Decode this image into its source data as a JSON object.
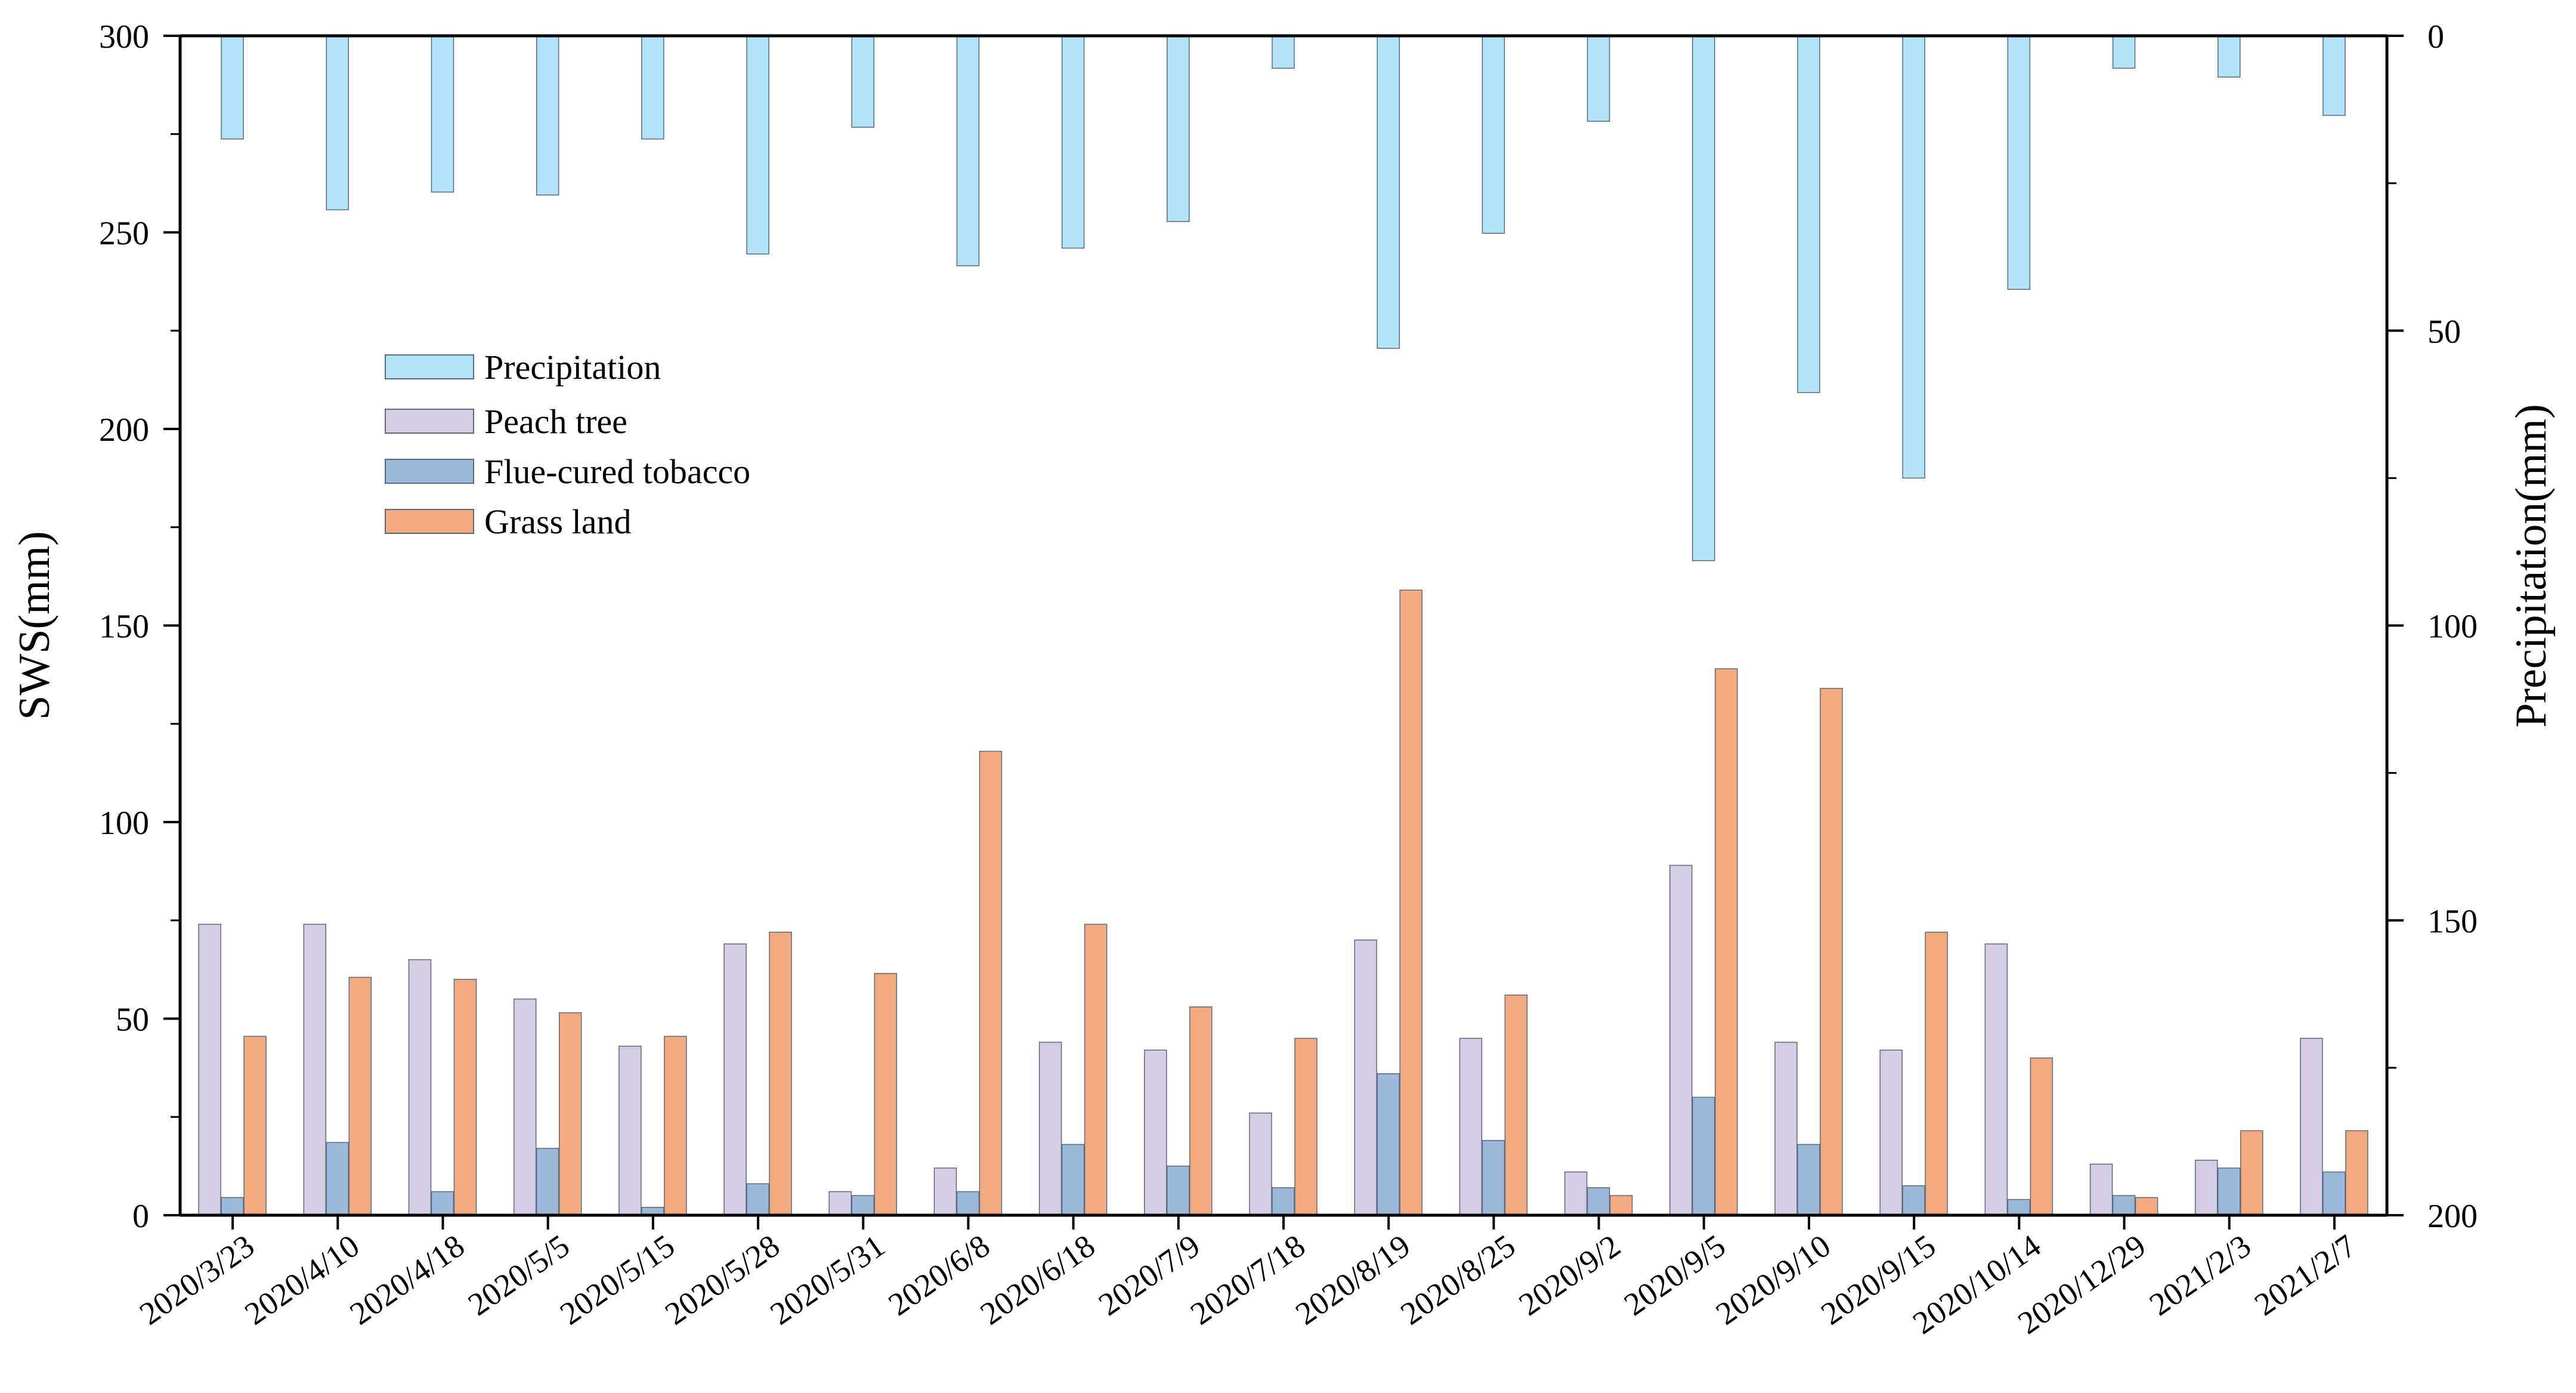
{
  "chart_data": {
    "type": "bar",
    "title": "",
    "xlabel": "",
    "ylabel_left": "SWS(mm)",
    "ylabel_right": "Precipitation(mm)",
    "ylim_left": [
      0,
      300
    ],
    "ylim_right": [
      0,
      200
    ],
    "right_axis_inverted": true,
    "yticks_left": [
      "0",
      "50",
      "100",
      "150",
      "200",
      "250",
      "300"
    ],
    "yticks_right": [
      "0",
      "50",
      "100",
      "150",
      "200"
    ],
    "grid": false,
    "legend_position": "upper-left",
    "categories": [
      "2020/3/23",
      "2020/4/10",
      "2020/4/18",
      "2020/5/5",
      "2020/5/15",
      "2020/5/28",
      "2020/5/31",
      "2020/6/8",
      "2020/6/18",
      "2020/7/9",
      "2020/7/18",
      "2020/8/19",
      "2020/8/25",
      "2020/9/2",
      "2020/9/5",
      "2020/9/10",
      "2020/9/15",
      "2020/10/14",
      "2020/12/29",
      "2021/2/3",
      "2021/2/7"
    ],
    "precipitation": {
      "name": "Precipitation",
      "axis": "right",
      "color": "#b3e3f8",
      "values": [
        17.5,
        29.5,
        26.5,
        27,
        17.5,
        37,
        15.5,
        39,
        36,
        31.5,
        5.5,
        53,
        33.5,
        14.5,
        89,
        60.5,
        75,
        43,
        5.5,
        7,
        13.5
      ]
    },
    "series": [
      {
        "name": "Peach tree",
        "color": "#d6cce5",
        "values": [
          74,
          74,
          65,
          55,
          43,
          69,
          6,
          12,
          44,
          42,
          26,
          70,
          45,
          11,
          89,
          44,
          42,
          69,
          13,
          14,
          45
        ]
      },
      {
        "name": "Flue-cured tobacco",
        "color": "#9cb9dc",
        "values": [
          4.5,
          18.5,
          6,
          17,
          2,
          8,
          5,
          6,
          18,
          12.5,
          7,
          36,
          19,
          7,
          30,
          18,
          7.5,
          4,
          5,
          12,
          11
        ]
      },
      {
        "name": "Grass land",
        "color": "#f4aa80",
        "values": [
          45.5,
          60.5,
          60,
          51.5,
          45.5,
          72,
          61.5,
          118,
          74,
          53,
          45,
          159,
          56,
          5,
          139,
          134,
          72,
          40,
          4.5,
          21.5,
          21.5
        ]
      }
    ],
    "legend": [
      "Precipitation",
      "Peach tree",
      "Flue-cured tobacco",
      "Grass land"
    ]
  }
}
